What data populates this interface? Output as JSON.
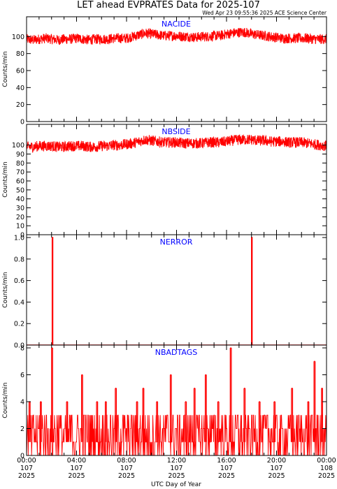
{
  "header": {
    "title": "LET ahead EVPRATES Data for 2025-107",
    "timestamp": "Wed Apr 23 09:55:36 2025 ACE Science Center"
  },
  "x_axis": {
    "label": "UTC Day of Year",
    "ticks": [
      {
        "hour": 0,
        "lines": [
          "00:00",
          "107",
          "2025"
        ]
      },
      {
        "hour": 4,
        "lines": [
          "04:00",
          "107",
          "2025"
        ]
      },
      {
        "hour": 8,
        "lines": [
          "08:00",
          "107",
          "2025"
        ]
      },
      {
        "hour": 12,
        "lines": [
          "12:00",
          "107",
          "2025"
        ]
      },
      {
        "hour": 16,
        "lines": [
          "16:00",
          "107",
          "2025"
        ]
      },
      {
        "hour": 20,
        "lines": [
          "20:00",
          "107",
          "2025"
        ]
      },
      {
        "hour": 24,
        "lines": [
          "00:00",
          "108",
          "2025"
        ]
      }
    ]
  },
  "colors": {
    "series": "#ff0000",
    "panel_label": "#0000ff",
    "axes": "#000000"
  },
  "chart_data": [
    {
      "type": "line",
      "name": "NACIDE",
      "ylabel": "Counts/min",
      "ylim": [
        0,
        120
      ],
      "yticks": [
        0,
        20,
        40,
        60,
        80,
        100
      ],
      "xlim": [
        0,
        24
      ],
      "series": [
        {
          "name": "NACIDE",
          "x": [
            0,
            0.5,
            1,
            1.5,
            2,
            2.5,
            3,
            3.5,
            4,
            4.5,
            5,
            5.5,
            6,
            6.5,
            7,
            7.5,
            8,
            8.5,
            9,
            9.5,
            10,
            10.5,
            11,
            11.5,
            12,
            12.5,
            13,
            13.5,
            14,
            14.5,
            15,
            15.5,
            16,
            16.5,
            17,
            17.5,
            18,
            18.5,
            19,
            19.5,
            20,
            20.5,
            21,
            21.5,
            22,
            22.5,
            23,
            23.5,
            24
          ],
          "y": [
            97,
            96,
            97,
            98,
            97,
            96,
            97,
            97,
            98,
            97,
            96,
            97,
            97,
            97,
            98,
            98,
            98,
            100,
            102,
            104,
            103,
            102,
            101,
            101,
            101,
            100,
            100,
            99,
            100,
            100,
            101,
            101,
            103,
            104,
            105,
            105,
            103,
            102,
            101,
            100,
            99,
            98,
            98,
            98,
            98,
            98,
            97,
            97,
            97
          ],
          "spread": 6
        }
      ]
    },
    {
      "type": "line",
      "name": "NBSIDE",
      "ylabel": "Counts/min",
      "ylim": [
        0,
        120
      ],
      "yticks": [
        0,
        10,
        20,
        30,
        40,
        50,
        60,
        70,
        80,
        90,
        100
      ],
      "xlim": [
        0,
        24
      ],
      "series": [
        {
          "name": "NBSIDE",
          "x": [
            0,
            0.5,
            1,
            1.5,
            2,
            2.5,
            3,
            3.5,
            4,
            4.5,
            5,
            5.5,
            6,
            6.5,
            7,
            7.5,
            8,
            8.5,
            9,
            9.5,
            10,
            10.5,
            11,
            11.5,
            12,
            12.5,
            13,
            13.5,
            14,
            14.5,
            15,
            15.5,
            16,
            16.5,
            17,
            17.5,
            18,
            18.5,
            19,
            19.5,
            20,
            20.5,
            21,
            21.5,
            22,
            22.5,
            23,
            23.5,
            24
          ],
          "y": [
            98,
            98,
            99,
            99,
            99,
            98,
            98,
            99,
            99,
            99,
            98,
            98,
            99,
            99,
            100,
            100,
            101,
            102,
            104,
            106,
            105,
            104,
            103,
            103,
            103,
            102,
            102,
            102,
            102,
            103,
            103,
            103,
            104,
            105,
            106,
            106,
            106,
            105,
            105,
            104,
            104,
            104,
            103,
            103,
            103,
            102,
            101,
            100,
            99
          ],
          "spread": 6
        }
      ]
    },
    {
      "type": "line",
      "name": "NERROR",
      "ylabel": "Counts/min",
      "ylim": [
        0,
        1.0
      ],
      "yticks": [
        0.0,
        0.2,
        0.4,
        0.6,
        0.8,
        1.0
      ],
      "xlim": [
        0,
        24
      ],
      "series": [
        {
          "name": "NERROR",
          "x": [
            0,
            2.05,
            2.05,
            2.1,
            2.1,
            18.0,
            18.0,
            18.05,
            18.05,
            24
          ],
          "y": [
            0,
            0,
            1,
            1,
            0,
            0,
            1,
            1,
            0,
            0
          ]
        }
      ]
    },
    {
      "type": "line",
      "name": "NBADTAGS",
      "ylabel": "Counts/min",
      "ylim": [
        0,
        8
      ],
      "yticks": [
        0,
        2,
        4,
        6,
        8
      ],
      "xlim": [
        0,
        24
      ],
      "spikes": [
        {
          "x": 0.2,
          "y": 4
        },
        {
          "x": 1.1,
          "y": 4
        },
        {
          "x": 2.0,
          "y": 8
        },
        {
          "x": 3.2,
          "y": 4
        },
        {
          "x": 4.4,
          "y": 6
        },
        {
          "x": 5.6,
          "y": 4
        },
        {
          "x": 6.3,
          "y": 4
        },
        {
          "x": 7.1,
          "y": 5
        },
        {
          "x": 8.8,
          "y": 4
        },
        {
          "x": 9.3,
          "y": 5
        },
        {
          "x": 10.4,
          "y": 4
        },
        {
          "x": 11.5,
          "y": 6
        },
        {
          "x": 12.7,
          "y": 4
        },
        {
          "x": 13.4,
          "y": 5
        },
        {
          "x": 14.3,
          "y": 6
        },
        {
          "x": 15.3,
          "y": 4
        },
        {
          "x": 16.3,
          "y": 8
        },
        {
          "x": 17.4,
          "y": 5
        },
        {
          "x": 18.6,
          "y": 4
        },
        {
          "x": 19.8,
          "y": 4
        },
        {
          "x": 21.2,
          "y": 5
        },
        {
          "x": 22.5,
          "y": 4
        },
        {
          "x": 23.0,
          "y": 7
        },
        {
          "x": 23.6,
          "y": 5
        }
      ],
      "baseline_range": [
        0,
        3
      ]
    }
  ]
}
